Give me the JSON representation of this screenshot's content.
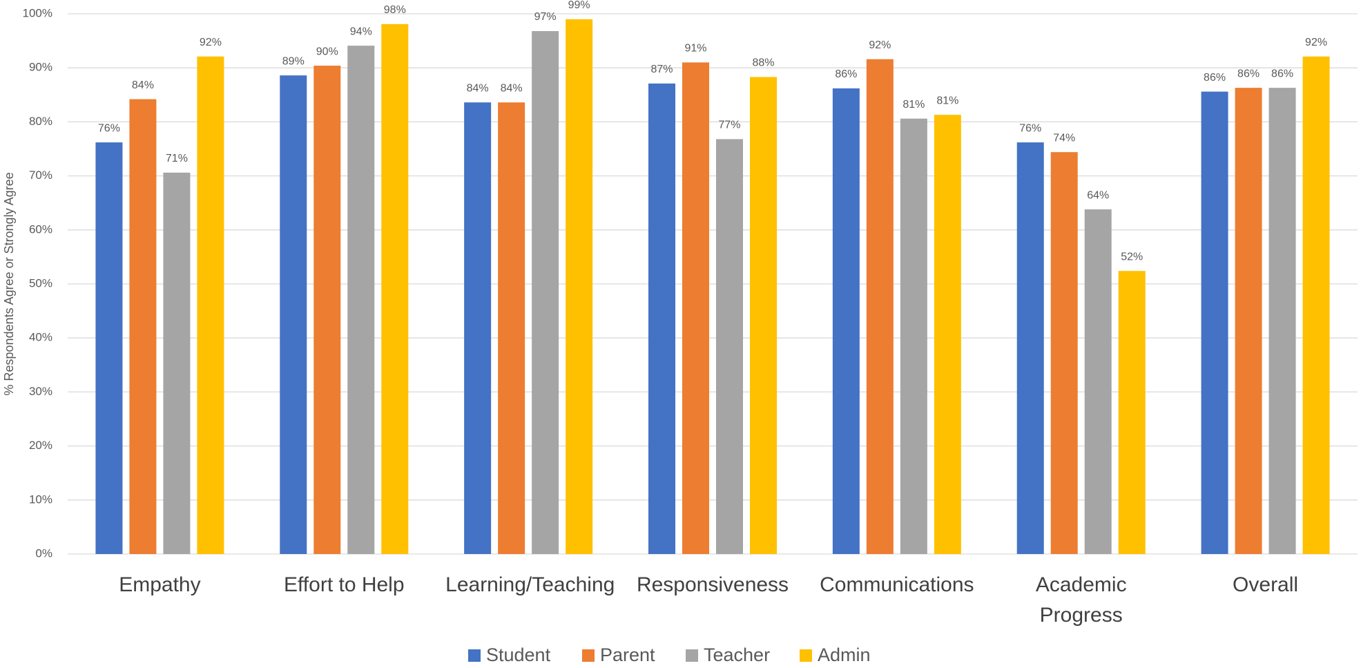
{
  "chart_data": {
    "type": "bar",
    "y_label": "% Respondents Agree or Strongly Agree",
    "categories": [
      "Empathy",
      "Effort to Help",
      "Learning/Teaching",
      "Responsiveness",
      "Communications",
      "Academic Progress",
      "Overall"
    ],
    "series": [
      {
        "name": "Student",
        "color": "#4472c4",
        "values": [
          76.2,
          88.6,
          83.6,
          87.1,
          86.2,
          76.2,
          85.6
        ],
        "value_labels": [
          "76%",
          "89%",
          "84%",
          "87%",
          "86%",
          "76%",
          "86%"
        ]
      },
      {
        "name": "Parent",
        "color": "#ed7d31",
        "values": [
          84.2,
          90.4,
          83.6,
          91.0,
          91.6,
          74.4,
          86.3
        ],
        "value_labels": [
          "84%",
          "90%",
          "84%",
          "91%",
          "92%",
          "74%",
          "86%"
        ]
      },
      {
        "name": "Teacher",
        "color": "#a5a5a5",
        "values": [
          70.6,
          94.1,
          96.8,
          76.8,
          80.6,
          63.8,
          86.3
        ],
        "value_labels": [
          "71%",
          "94%",
          "97%",
          "77%",
          "81%",
          "64%",
          "86%"
        ]
      },
      {
        "name": "Admin",
        "color": "#ffc000",
        "values": [
          92.1,
          98.1,
          99.0,
          88.3,
          81.3,
          52.4,
          92.1
        ],
        "value_labels": [
          "92%",
          "98%",
          "99%",
          "88%",
          "81%",
          "52%",
          "92%"
        ]
      }
    ],
    "ylim": [
      0,
      100
    ],
    "yticks": [
      {
        "value": 0,
        "label": "0%"
      },
      {
        "value": 10,
        "label": "10%"
      },
      {
        "value": 20,
        "label": "20%"
      },
      {
        "value": 30,
        "label": "30%"
      },
      {
        "value": 40,
        "label": "40%"
      },
      {
        "value": 50,
        "label": "50%"
      },
      {
        "value": 60,
        "label": "60%"
      },
      {
        "value": 70,
        "label": "70%"
      },
      {
        "value": 80,
        "label": "80%"
      },
      {
        "value": 90,
        "label": "90%"
      },
      {
        "value": 100,
        "label": "100%"
      }
    ],
    "grid": true,
    "legend": "bottom"
  }
}
